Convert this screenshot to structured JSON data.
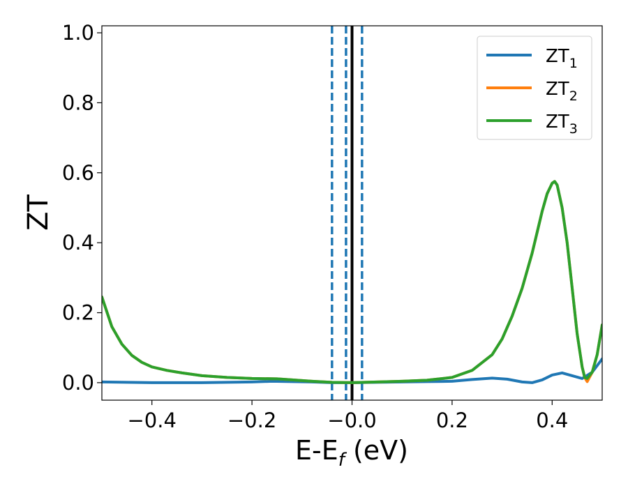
{
  "chart_data": {
    "type": "line",
    "xlabel": {
      "main": "E-E",
      "sub": "f",
      "unit": " (eV)"
    },
    "ylabel": "ZT",
    "xlim": [
      -0.5,
      0.5
    ],
    "ylim": [
      -0.05,
      1.02
    ],
    "xticks": [
      {
        "value": -0.4,
        "label": "−0.4"
      },
      {
        "value": -0.2,
        "label": "−0.2"
      },
      {
        "value": 0.0,
        "label": "−0.0"
      },
      {
        "value": 0.2,
        "label": "0.2"
      },
      {
        "value": 0.4,
        "label": "0.4"
      }
    ],
    "yticks": [
      {
        "value": 0.0,
        "label": "0.0"
      },
      {
        "value": 0.2,
        "label": "0.2"
      },
      {
        "value": 0.4,
        "label": "0.4"
      },
      {
        "value": 0.6,
        "label": "0.6"
      },
      {
        "value": 0.8,
        "label": "0.8"
      },
      {
        "value": 1.0,
        "label": "1.0"
      }
    ],
    "grid": false,
    "legend_position": "top-right",
    "series": [
      {
        "name": "ZT",
        "name_sub": "1",
        "color": "#1f77b4",
        "x": [
          -0.5,
          -0.45,
          -0.4,
          -0.35,
          -0.3,
          -0.25,
          -0.2,
          -0.16,
          -0.12,
          -0.08,
          -0.04,
          0.0,
          0.05,
          0.1,
          0.15,
          0.2,
          0.24,
          0.28,
          0.31,
          0.34,
          0.36,
          0.38,
          0.4,
          0.42,
          0.44,
          0.46,
          0.48,
          0.5
        ],
        "y": [
          0.002,
          0.001,
          0.0,
          0.0,
          0.0,
          0.001,
          0.002,
          0.004,
          0.003,
          0.002,
          0.0,
          0.0,
          0.001,
          0.002,
          0.003,
          0.004,
          0.009,
          0.013,
          0.01,
          0.002,
          0.0,
          0.008,
          0.022,
          0.028,
          0.02,
          0.012,
          0.03,
          0.068
        ]
      },
      {
        "name": "ZT",
        "name_sub": "2",
        "color": "#ff7f0e",
        "x": [
          -0.5,
          -0.48,
          -0.46,
          -0.44,
          -0.42,
          -0.4,
          -0.37,
          -0.34,
          -0.3,
          -0.25,
          -0.2,
          -0.15,
          -0.12,
          -0.08,
          -0.04,
          0.0,
          0.05,
          0.1,
          0.15,
          0.2,
          0.24,
          0.28,
          0.3,
          0.32,
          0.34,
          0.36,
          0.37,
          0.38,
          0.39,
          0.4,
          0.405,
          0.41,
          0.42,
          0.43,
          0.44,
          0.45,
          0.46,
          0.465,
          0.47,
          0.48,
          0.49,
          0.5
        ],
        "y": [
          0.245,
          0.16,
          0.11,
          0.078,
          0.058,
          0.045,
          0.035,
          0.028,
          0.02,
          0.015,
          0.012,
          0.011,
          0.008,
          0.004,
          0.001,
          0.0,
          0.002,
          0.004,
          0.007,
          0.015,
          0.035,
          0.08,
          0.125,
          0.19,
          0.27,
          0.37,
          0.43,
          0.49,
          0.54,
          0.57,
          0.575,
          0.565,
          0.5,
          0.4,
          0.27,
          0.14,
          0.045,
          0.015,
          0.003,
          0.03,
          0.08,
          0.165
        ]
      },
      {
        "name": "ZT",
        "name_sub": "3",
        "color": "#2ca02c",
        "x": [
          -0.5,
          -0.48,
          -0.46,
          -0.44,
          -0.42,
          -0.4,
          -0.37,
          -0.34,
          -0.3,
          -0.25,
          -0.2,
          -0.15,
          -0.12,
          -0.08,
          -0.04,
          0.0,
          0.05,
          0.1,
          0.15,
          0.2,
          0.24,
          0.28,
          0.3,
          0.32,
          0.34,
          0.36,
          0.37,
          0.38,
          0.39,
          0.4,
          0.405,
          0.41,
          0.42,
          0.43,
          0.44,
          0.45,
          0.46,
          0.465,
          0.47,
          0.48,
          0.49,
          0.5
        ],
        "y": [
          0.245,
          0.16,
          0.11,
          0.078,
          0.058,
          0.045,
          0.035,
          0.028,
          0.02,
          0.015,
          0.012,
          0.011,
          0.008,
          0.004,
          0.001,
          0.0,
          0.002,
          0.004,
          0.007,
          0.015,
          0.035,
          0.08,
          0.125,
          0.19,
          0.27,
          0.37,
          0.43,
          0.49,
          0.54,
          0.57,
          0.575,
          0.565,
          0.5,
          0.4,
          0.27,
          0.14,
          0.045,
          0.015,
          0.012,
          0.03,
          0.08,
          0.165
        ]
      }
    ],
    "vlines": [
      {
        "x": -0.04,
        "style": "dashed",
        "color": "#1f77b4"
      },
      {
        "x": -0.012,
        "style": "dashed",
        "color": "#1f77b4"
      },
      {
        "x": 0.0,
        "style": "solid",
        "color": "#000000"
      },
      {
        "x": 0.02,
        "style": "dashed",
        "color": "#1f77b4"
      }
    ]
  }
}
